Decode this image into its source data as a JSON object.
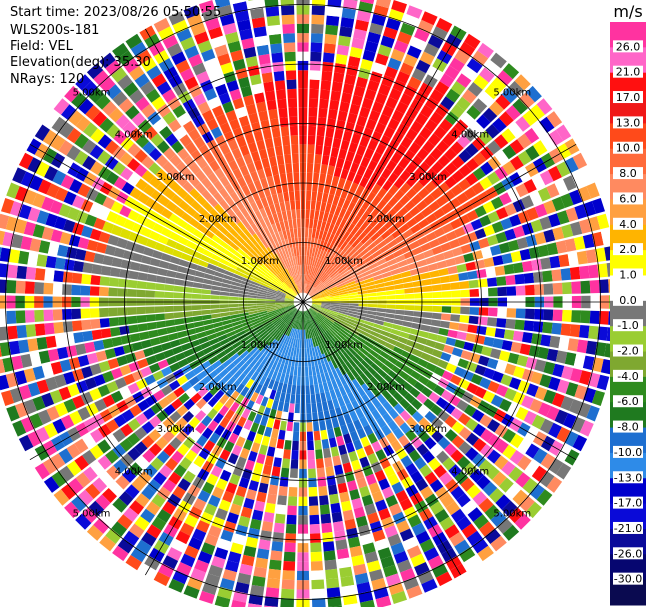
{
  "header": {
    "start_time": "Start time: 2023/08/26 05:50:55",
    "instrument": "WLS200s-181",
    "field": "Field: VEL",
    "elevation": "Elevation(deg): 35.30",
    "nrays": "NRays: 120"
  },
  "chart_data": {
    "type": "heatmap",
    "projection": "polar PPI",
    "n_rays": 120,
    "range_rings_km": [
      1.0,
      2.0,
      3.0,
      4.0,
      5.0
    ],
    "ring_labels": [
      "1.00km",
      "2.00km",
      "3.00km",
      "4.00km",
      "5.00km"
    ],
    "max_range_km": 5.3,
    "colorbar": {
      "unit": "m/s",
      "ticks": [
        "26.0",
        "21.0",
        "17.0",
        "13.0",
        "10.0",
        "8.0",
        "6.0",
        "4.0",
        "2.0",
        "1.0",
        "0.0",
        "-1.0",
        "-2.0",
        "-4.0",
        "-6.0",
        "-8.0",
        "-10.0",
        "-13.0",
        "-17.0",
        "-21.0",
        "-26.0",
        "-30.0"
      ],
      "colors": [
        "#ff33a0",
        "#ff66c8",
        "#ff1010",
        "#f01818",
        "#ff4a1a",
        "#ff6a3a",
        "#ff8a60",
        "#ffa040",
        "#ffb400",
        "#ffff00",
        "#ffffff",
        "#777777",
        "#9acd32",
        "#7fa830",
        "#2e8b1e",
        "#1f7a1f",
        "#1e6fd0",
        "#2e8be8",
        "#0000cd",
        "#0a0ad8",
        "#0a0a9a",
        "#060670",
        "#0a0a50"
      ]
    },
    "velocity_pattern": {
      "north": "6 to 13 m/s (orange/red)",
      "northeast": "2 to 4 m/s (yellow)",
      "east_near": "0 m/s (grey)",
      "south": "-8 to -10 m/s (blue)",
      "southwest": "-4 to -6 m/s (green)"
    }
  }
}
